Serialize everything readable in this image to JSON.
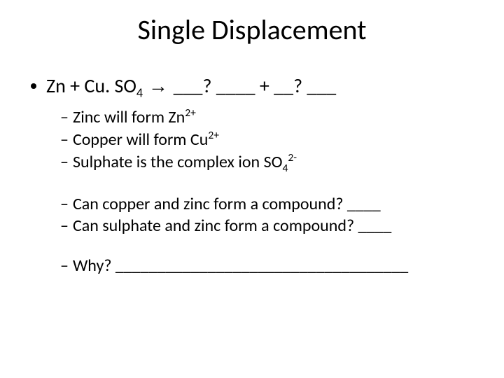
{
  "title": "Single Displacement",
  "equation": {
    "prefix": "Zn + Cu. SO",
    "sub1": "4",
    "arrow": " → ",
    "blank1": "___? ____ + __? ___"
  },
  "sub_bullets": [
    {
      "pre": "Zinc will form Zn",
      "sup": "2+",
      "post": ""
    },
    {
      "pre": "Copper will form Cu",
      "sup": "2+",
      "post": ""
    },
    {
      "pre": "Sulphate is the complex ion SO",
      "sub": "4",
      "sup": "2-",
      "post": ""
    }
  ],
  "questions": [
    "Can copper and zinc form a compound? ____",
    "Can sulphate and zinc form a compound? ____"
  ],
  "why": "Why? ___________________________________",
  "colors": {
    "background": "#ffffff",
    "text": "#000000"
  },
  "fonts": {
    "title_size": 40,
    "l1_size": 28,
    "l2_size": 24
  }
}
